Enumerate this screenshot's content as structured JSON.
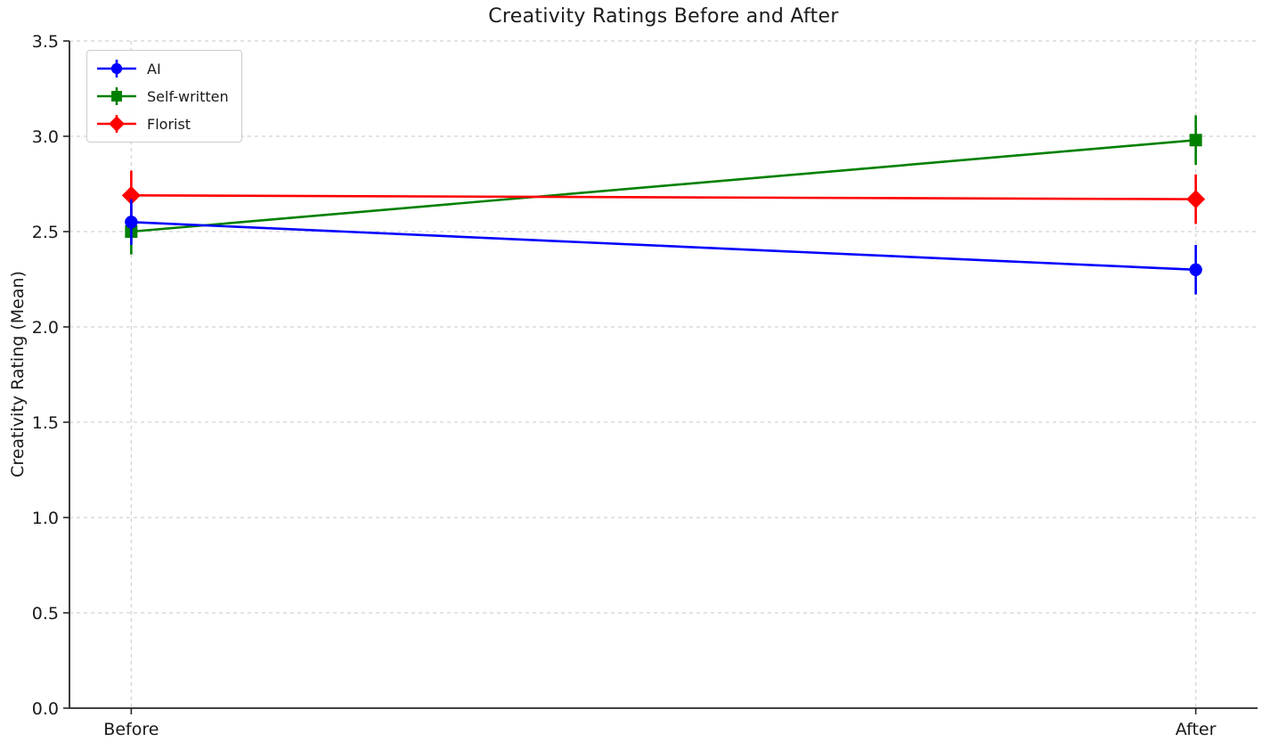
{
  "figure": {
    "background": "#ffffff"
  },
  "chart_data": {
    "type": "line",
    "title": "Creativity Ratings Before and After",
    "xlabel": "",
    "ylabel": "Creativity Rating (Mean)",
    "categories": [
      "Before",
      "After"
    ],
    "ylim": [
      0.0,
      3.5
    ],
    "yticks": [
      0.0,
      0.5,
      1.0,
      1.5,
      2.0,
      2.5,
      3.0,
      3.5
    ],
    "grid": {
      "style": "dashed",
      "color": "#d2d2d2",
      "x": true,
      "y": true
    },
    "legend": {
      "position": "upper-left"
    },
    "series": [
      {
        "name": "AI",
        "color": "#0000ff",
        "marker": "circle",
        "values": [
          2.55,
          2.3
        ],
        "errors": [
          0.12,
          0.13
        ],
        "z": 3
      },
      {
        "name": "Self-written",
        "color": "#008000",
        "marker": "square",
        "values": [
          2.5,
          2.98
        ],
        "errors": [
          0.12,
          0.13
        ],
        "z": 1
      },
      {
        "name": "Florist",
        "color": "#ff0000",
        "marker": "diamond",
        "values": [
          2.69,
          2.67
        ],
        "errors": [
          0.13,
          0.13
        ],
        "z": 2
      }
    ]
  }
}
